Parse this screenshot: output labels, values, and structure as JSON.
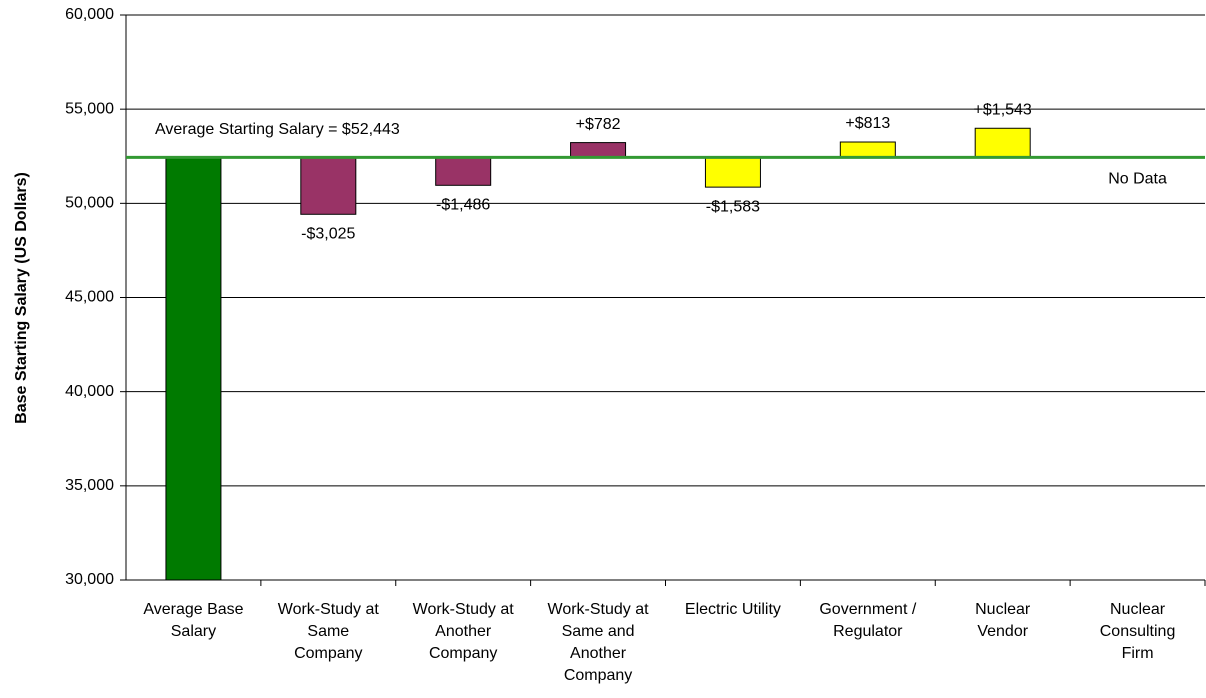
{
  "chart_data": {
    "type": "bar",
    "y_label": "Base Starting Salary (US Dollars)",
    "annotation": "Average Starting Salary = $52,443",
    "baseline": 52443,
    "baseline_color": "#339933",
    "categories": [
      [
        "Average Base",
        "Salary"
      ],
      [
        "Work-Study at",
        "Same",
        "Company"
      ],
      [
        "Work-Study at",
        "Another",
        "Company"
      ],
      [
        "Work-Study at",
        "Same and",
        "Another",
        "Company"
      ],
      [
        "Electric Utility"
      ],
      [
        "Government /",
        "Regulator"
      ],
      [
        "Nuclear",
        "Vendor"
      ],
      [
        "Nuclear",
        "Consulting",
        "Firm"
      ]
    ],
    "values": [
      52443,
      -3025,
      -1486,
      782,
      -1583,
      813,
      1543,
      null
    ],
    "value_labels": [
      null,
      "-$3,025",
      "-$1,486",
      "+$782",
      "-$1,583",
      "+$813",
      "+$1,543",
      "No Data"
    ],
    "colors": [
      "#007a00",
      "#993366",
      "#993366",
      "#993366",
      "#ffff00",
      "#ffff00",
      "#ffff00",
      "#ffff00"
    ],
    "ylim": [
      30000,
      60000
    ],
    "yticks": [
      {
        "value": 30000,
        "label": "30,000"
      },
      {
        "value": 35000,
        "label": "35,000"
      },
      {
        "value": 40000,
        "label": "40,000"
      },
      {
        "value": 45000,
        "label": "45,000"
      },
      {
        "value": 50000,
        "label": "50,000"
      },
      {
        "value": 55000,
        "label": "55,000"
      },
      {
        "value": 60000,
        "label": "60,000"
      }
    ],
    "grid": true
  }
}
